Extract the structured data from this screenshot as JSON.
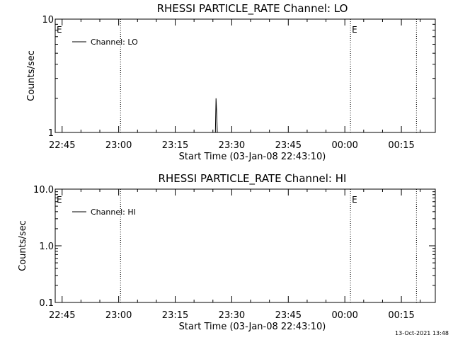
{
  "chart_data": [
    {
      "type": "line",
      "title": "RHESSI PARTICLE_RATE Channel: LO",
      "xlabel": "Start Time (03-Jan-08 22:43:10)",
      "ylabel": "Counts/sec",
      "yscale": "log",
      "ylim": [
        1,
        10
      ],
      "xlim": [
        "22:43:10",
        "00:24:00"
      ],
      "x_ticks": [
        "22:45",
        "23:00",
        "23:15",
        "23:30",
        "23:45",
        "00:00",
        "00:15"
      ],
      "y_ticks": [
        "1",
        "10"
      ],
      "legend": {
        "position": "top-left",
        "entries": [
          "Channel: LO"
        ]
      },
      "markers": [
        {
          "time": "23:00:30",
          "label": ""
        },
        {
          "time": "00:01:30",
          "label": "E"
        },
        {
          "time": "00:19:00",
          "label": ""
        }
      ],
      "edge_label": "E",
      "series": [
        {
          "name": "Channel: LO",
          "x": [
            "23:25:40",
            "23:25:50",
            "23:26:00",
            "23:26:10"
          ],
          "y": [
            1.0,
            2.0,
            1.5,
            1.0
          ]
        }
      ]
    },
    {
      "type": "line",
      "title": "RHESSI PARTICLE_RATE Channel: HI",
      "xlabel": "Start Time (03-Jan-08 22:43:10)",
      "ylabel": "Counts/sec",
      "yscale": "log",
      "ylim": [
        0.1,
        10
      ],
      "xlim": [
        "22:43:10",
        "00:24:00"
      ],
      "x_ticks": [
        "22:45",
        "23:00",
        "23:15",
        "23:30",
        "23:45",
        "00:00",
        "00:15"
      ],
      "y_ticks": [
        "0.1",
        "1.0",
        "10.0"
      ],
      "legend": {
        "position": "top-left",
        "entries": [
          "Channel: HI"
        ]
      },
      "markers": [
        {
          "time": "23:00:30",
          "label": ""
        },
        {
          "time": "00:01:30",
          "label": "E"
        },
        {
          "time": "00:19:00",
          "label": ""
        }
      ],
      "edge_label": "E",
      "series": [
        {
          "name": "Channel: HI",
          "x": [],
          "y": []
        }
      ]
    }
  ],
  "footer": {
    "timestamp": "13-Oct-2021 13:48"
  }
}
